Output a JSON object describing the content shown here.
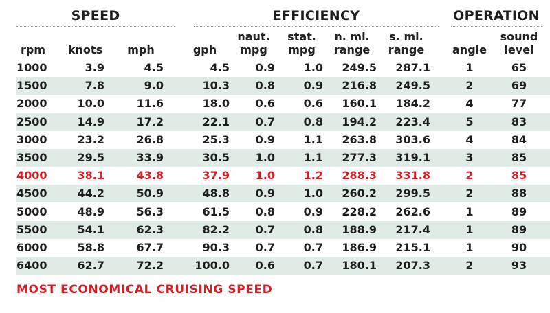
{
  "groups": {
    "speed": "SPEED",
    "efficiency": "EFFICIENCY",
    "operation": "OPERATION"
  },
  "headers": [
    {
      "line1": "",
      "line2": "rpm"
    },
    {
      "line1": "",
      "line2": "knots"
    },
    {
      "line1": "",
      "line2": "mph"
    },
    {
      "line1": "",
      "line2": "gph"
    },
    {
      "line1": "naut.",
      "line2": "mpg"
    },
    {
      "line1": "stat.",
      "line2": "mpg"
    },
    {
      "line1": "n. mi.",
      "line2": "range"
    },
    {
      "line1": "s. mi.",
      "line2": "range"
    },
    {
      "line1": "",
      "line2": "angle"
    },
    {
      "line1": "sound",
      "line2": "level"
    }
  ],
  "rows": [
    {
      "cells": [
        "1000",
        "3.9",
        "4.5",
        "4.5",
        "0.9",
        "1.0",
        "249.5",
        "287.1",
        "1",
        "65"
      ],
      "shaded": false,
      "highlight": false
    },
    {
      "cells": [
        "1500",
        "7.8",
        "9.0",
        "10.3",
        "0.8",
        "0.9",
        "216.8",
        "249.5",
        "2",
        "69"
      ],
      "shaded": true,
      "highlight": false
    },
    {
      "cells": [
        "2000",
        "10.0",
        "11.6",
        "18.0",
        "0.6",
        "0.6",
        "160.1",
        "184.2",
        "4",
        "77"
      ],
      "shaded": false,
      "highlight": false
    },
    {
      "cells": [
        "2500",
        "14.9",
        "17.2",
        "22.1",
        "0.7",
        "0.8",
        "194.2",
        "223.4",
        "5",
        "83"
      ],
      "shaded": true,
      "highlight": false
    },
    {
      "cells": [
        "3000",
        "23.2",
        "26.8",
        "25.3",
        "0.9",
        "1.1",
        "263.8",
        "303.6",
        "4",
        "84"
      ],
      "shaded": false,
      "highlight": false
    },
    {
      "cells": [
        "3500",
        "29.5",
        "33.9",
        "30.5",
        "1.0",
        "1.1",
        "277.3",
        "319.1",
        "3",
        "85"
      ],
      "shaded": true,
      "highlight": false
    },
    {
      "cells": [
        "4000",
        "38.1",
        "43.8",
        "37.9",
        "1.0",
        "1.2",
        "288.3",
        "331.8",
        "2",
        "85"
      ],
      "shaded": false,
      "highlight": true
    },
    {
      "cells": [
        "4500",
        "44.2",
        "50.9",
        "48.8",
        "0.9",
        "1.0",
        "260.2",
        "299.5",
        "2",
        "88"
      ],
      "shaded": true,
      "highlight": false
    },
    {
      "cells": [
        "5000",
        "48.9",
        "56.3",
        "61.5",
        "0.8",
        "0.9",
        "228.2",
        "262.6",
        "1",
        "89"
      ],
      "shaded": false,
      "highlight": false
    },
    {
      "cells": [
        "5500",
        "54.1",
        "62.3",
        "82.2",
        "0.7",
        "0.8",
        "188.9",
        "217.4",
        "1",
        "89"
      ],
      "shaded": true,
      "highlight": false
    },
    {
      "cells": [
        "6000",
        "58.8",
        "67.7",
        "90.3",
        "0.7",
        "0.7",
        "186.9",
        "215.1",
        "1",
        "90"
      ],
      "shaded": false,
      "highlight": false
    },
    {
      "cells": [
        "6400",
        "62.7",
        "72.2",
        "100.0",
        "0.6",
        "0.7",
        "180.1",
        "207.3",
        "2",
        "93"
      ],
      "shaded": true,
      "highlight": false
    }
  ],
  "footnote": "MOST ECONOMICAL CRUISING SPEED",
  "colors": {
    "highlight": "#d32027",
    "shaded_row": "#e1ebe6",
    "text": "#1e1e1e"
  }
}
